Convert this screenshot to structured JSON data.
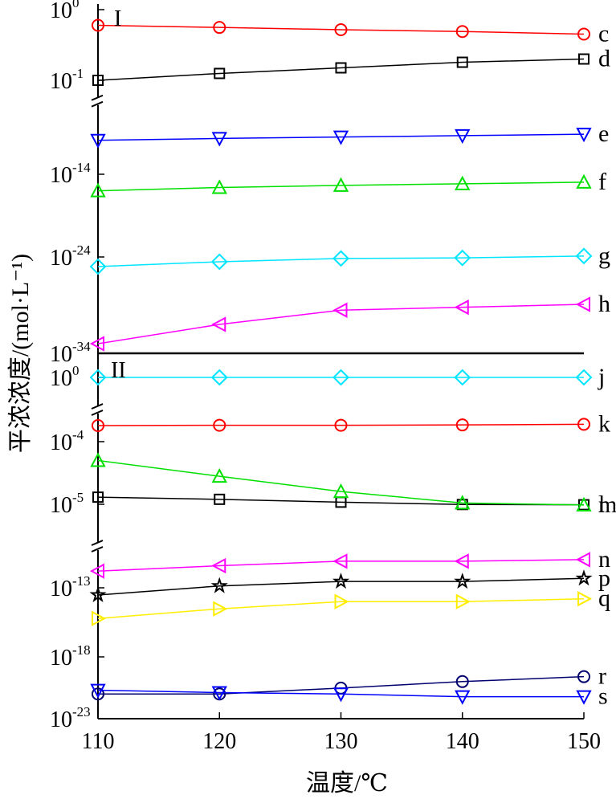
{
  "chart_data": {
    "type": "line",
    "ylabel": "平浓浓度/(mol·L⁻¹)",
    "xlabel": "温度/℃",
    "x": [
      110,
      120,
      130,
      140,
      150
    ],
    "xlim": [
      110,
      150
    ],
    "x_ticks": [
      "110",
      "120",
      "130",
      "140",
      "150"
    ],
    "grid": false,
    "legend": "none",
    "panels": [
      {
        "label": "I",
        "y_scale": "log",
        "y_ticks": [
          {
            "base": "10",
            "exp": "0"
          },
          {
            "base": "10",
            "exp": "-1"
          },
          {
            "base": "10",
            "exp": "-14"
          },
          {
            "base": "10",
            "exp": "-24"
          },
          {
            "base": "10",
            "exp": "-34"
          }
        ],
        "axis_break_between": [
          "1e-1",
          "1e-14"
        ],
        "series": [
          {
            "name": "c",
            "marker": "circle",
            "color": "#ff0000",
            "values": [
              0.6,
              0.56,
              0.52,
              0.49,
              0.45
            ]
          },
          {
            "name": "d",
            "marker": "square",
            "color": "#000000",
            "values": [
              0.1,
              0.125,
              0.15,
              0.18,
              0.2
            ]
          },
          {
            "name": "e",
            "marker": "triangle-down",
            "color": "#0000ff",
            "values": [
              5e-10,
              9e-10,
              1.4e-09,
              2.2e-09,
              3.5e-09
            ]
          },
          {
            "name": "f",
            "marker": "triangle-up",
            "color": "#00e000",
            "values": [
              1e-16,
              2.5e-16,
              4.5e-16,
              7e-16,
              1.1e-15
            ]
          },
          {
            "name": "g",
            "marker": "diamond",
            "color": "#00e5ff",
            "values": [
              1e-25,
              3.2e-25,
              7e-25,
              8e-25,
              1.3e-24
            ]
          },
          {
            "name": "h",
            "marker": "triangle-left",
            "color": "#ff00ff",
            "values": [
              1e-33,
              1e-31,
              3e-30,
              6e-30,
              1.2e-29
            ]
          }
        ]
      },
      {
        "label": "II",
        "y_scale": "log",
        "y_ticks": [
          {
            "base": "10",
            "exp": "0"
          },
          {
            "base": "10",
            "exp": "-4"
          },
          {
            "base": "10",
            "exp": "-5"
          },
          {
            "base": "10",
            "exp": "-13"
          },
          {
            "base": "10",
            "exp": "-18"
          },
          {
            "base": "10",
            "exp": "-23"
          }
        ],
        "axis_breaks": [
          [
            "1e0",
            "1e-4"
          ],
          [
            "1e-5",
            "1e-13"
          ]
        ],
        "series": [
          {
            "name": "j",
            "marker": "diamond",
            "color": "#00e5ff",
            "values": [
              1.0,
              1.0,
              1.0,
              1.0,
              1.0
            ]
          },
          {
            "name": "k",
            "marker": "circle",
            "color": "#ff0000",
            "values": [
              0.001,
              0.00105,
              0.00105,
              0.0011,
              0.0012
            ]
          },
          {
            "name": "l",
            "marker": "square",
            "color": "#000000",
            "values": [
              1.3e-05,
              1.2e-05,
              1.08e-05,
              9.5e-06,
              9e-06
            ]
          },
          {
            "name": "m",
            "marker": "triangle-up",
            "color": "#00e000",
            "values": [
              5e-05,
              2.8e-05,
              1.6e-05,
              1.05e-05,
              8.5e-06
            ]
          },
          {
            "name": "n",
            "marker": "triangle-left",
            "color": "#ff00ff",
            "values": [
              4e-12,
              1.3e-11,
              3.5e-11,
              3.5e-11,
              5e-11
            ]
          },
          {
            "name": "p",
            "marker": "star",
            "color": "#000000",
            "values": [
              3e-14,
              1.5e-13,
              4e-13,
              4e-13,
              8e-13
            ]
          },
          {
            "name": "q",
            "marker": "triangle-right",
            "color": "#ffee00",
            "values": [
              6e-16,
              3e-15,
              1e-14,
              1e-14,
              1.6e-14
            ]
          },
          {
            "name": "r",
            "marker": "circle",
            "color": "#00006e",
            "values": [
              1e-21,
              1e-21,
              3e-21,
              1e-20,
              2.5e-20
            ]
          },
          {
            "name": "s",
            "marker": "triangle-down",
            "color": "#0000ff",
            "values": [
              2e-21,
              1.3e-21,
              1e-21,
              6e-22,
              6e-22
            ]
          }
        ]
      }
    ]
  }
}
